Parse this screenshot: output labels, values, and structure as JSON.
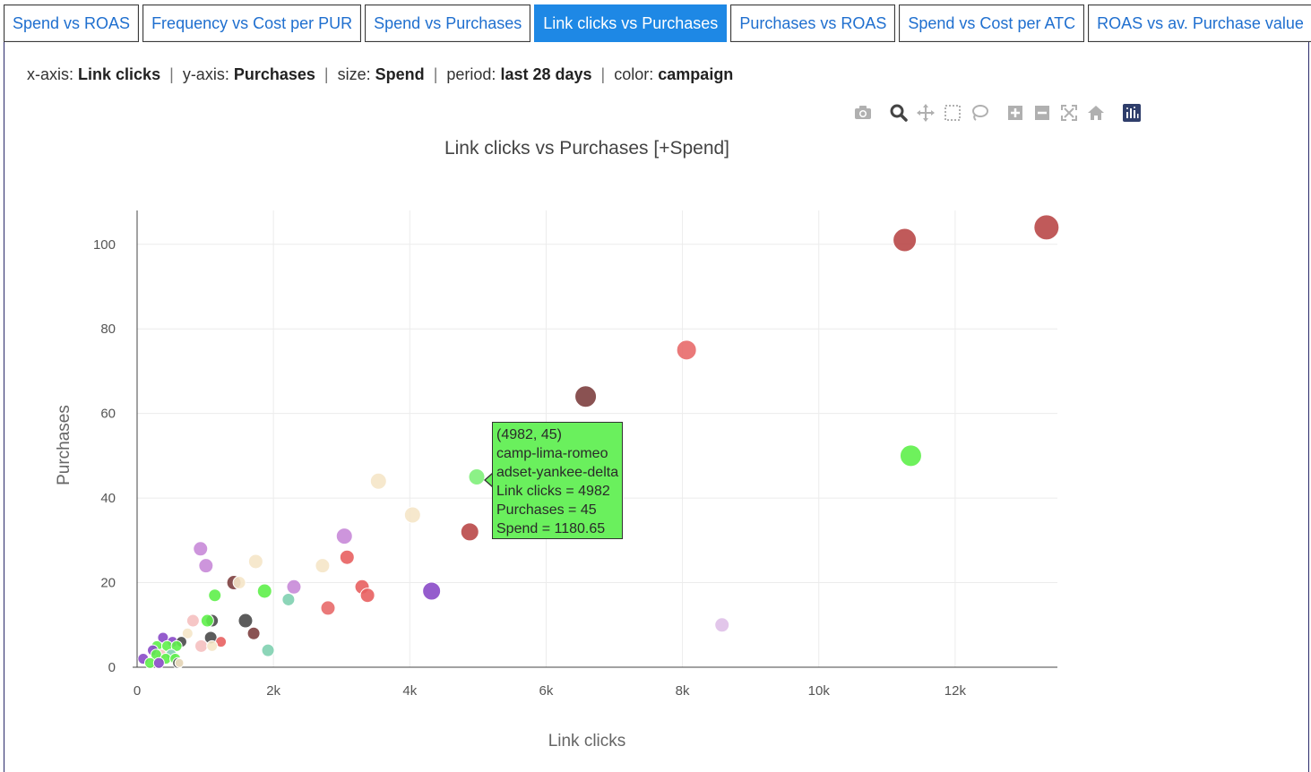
{
  "tabs": [
    {
      "label": "Spend vs ROAS",
      "active": false
    },
    {
      "label": "Frequency vs Cost per PUR",
      "active": false
    },
    {
      "label": "Spend vs Purchases",
      "active": false
    },
    {
      "label": "Link clicks vs Purchases",
      "active": true
    },
    {
      "label": "Purchases vs ROAS",
      "active": false
    },
    {
      "label": "Spend vs Cost per ATC",
      "active": false
    },
    {
      "label": "ROAS vs av. Purchase value",
      "active": false
    }
  ],
  "info": {
    "xaxis_label": "x-axis:",
    "xaxis_value": "Link clicks",
    "yaxis_label": "y-axis:",
    "yaxis_value": "Purchases",
    "size_label": "size:",
    "size_value": "Spend",
    "period_label": "period:",
    "period_value": "last 28 days",
    "color_label": "color:",
    "color_value": "campaign",
    "separator": "|"
  },
  "modebar": [
    "camera-icon",
    "zoom-icon",
    "pan-icon",
    "box-select-icon",
    "lasso-select-icon",
    "zoom-in-icon",
    "zoom-out-icon",
    "autoscale-icon",
    "reset-axes-icon",
    "plotly-logo-icon"
  ],
  "tooltip": {
    "lines": [
      "(4982, 45)",
      "camp-lima-romeo",
      "adset-yankee-delta",
      "Link clicks = 4982",
      "Purchases = 45",
      "Spend = 1180.65"
    ],
    "color": "#6af05d"
  },
  "chart_data": {
    "type": "scatter",
    "title": "Link clicks vs Purchases [+Spend]",
    "xlabel": "Link clicks",
    "ylabel": "Purchases",
    "xlim": [
      0,
      13500
    ],
    "ylim": [
      0,
      108
    ],
    "xticks": [
      0,
      2000,
      4000,
      6000,
      8000,
      10000,
      12000
    ],
    "xtick_labels": [
      "0",
      "2k",
      "4k",
      "6k",
      "8k",
      "10k",
      "12k"
    ],
    "yticks": [
      0,
      20,
      40,
      60,
      80,
      100
    ],
    "ytick_labels": [
      "0",
      "20",
      "40",
      "60",
      "80",
      "100"
    ],
    "grid": true,
    "points": [
      {
        "x": 13340,
        "y": 104,
        "size": 14,
        "color": "#b94848"
      },
      {
        "x": 11260,
        "y": 101,
        "size": 13,
        "color": "#b94848"
      },
      {
        "x": 8060,
        "y": 75,
        "size": 11,
        "color": "#e86a6a"
      },
      {
        "x": 6580,
        "y": 64,
        "size": 12,
        "color": "#7d3f3f"
      },
      {
        "x": 11350,
        "y": 50,
        "size": 12,
        "color": "#5ef04a"
      },
      {
        "x": 4982,
        "y": 45,
        "size": 9,
        "color": "#7ff07a"
      },
      {
        "x": 3540,
        "y": 44,
        "size": 9,
        "color": "#f5e6c8"
      },
      {
        "x": 4040,
        "y": 36,
        "size": 9,
        "color": "#f5e6c8"
      },
      {
        "x": 4880,
        "y": 32,
        "size": 10,
        "color": "#b94848"
      },
      {
        "x": 3040,
        "y": 31,
        "size": 9,
        "color": "#c889d8"
      },
      {
        "x": 3080,
        "y": 26,
        "size": 8,
        "color": "#e86060"
      },
      {
        "x": 2720,
        "y": 24,
        "size": 8,
        "color": "#f5e6c8"
      },
      {
        "x": 1740,
        "y": 25,
        "size": 8,
        "color": "#f5e6c8"
      },
      {
        "x": 930,
        "y": 28,
        "size": 8,
        "color": "#c889d8"
      },
      {
        "x": 1010,
        "y": 24,
        "size": 8,
        "color": "#c889d8"
      },
      {
        "x": 1420,
        "y": 20,
        "size": 8,
        "color": "#7d3f3f"
      },
      {
        "x": 1500,
        "y": 20,
        "size": 7,
        "color": "#f5e6c8"
      },
      {
        "x": 2300,
        "y": 19,
        "size": 8,
        "color": "#c889d8"
      },
      {
        "x": 1870,
        "y": 18,
        "size": 8,
        "color": "#5ef04a"
      },
      {
        "x": 1140,
        "y": 17,
        "size": 7,
        "color": "#5ef04a"
      },
      {
        "x": 4320,
        "y": 18,
        "size": 10,
        "color": "#8a4ac8"
      },
      {
        "x": 3300,
        "y": 19,
        "size": 8,
        "color": "#e86060"
      },
      {
        "x": 3380,
        "y": 17,
        "size": 8,
        "color": "#e86060"
      },
      {
        "x": 2220,
        "y": 16,
        "size": 7,
        "color": "#7fd0b0"
      },
      {
        "x": 2800,
        "y": 14,
        "size": 8,
        "color": "#e86a6a"
      },
      {
        "x": 8580,
        "y": 10,
        "size": 8,
        "color": "#dfc0e8"
      },
      {
        "x": 1590,
        "y": 11,
        "size": 8,
        "color": "#4a4a4a"
      },
      {
        "x": 1100,
        "y": 11,
        "size": 7,
        "color": "#4a4a4a"
      },
      {
        "x": 1030,
        "y": 11,
        "size": 7,
        "color": "#5ef04a"
      },
      {
        "x": 820,
        "y": 11,
        "size": 7,
        "color": "#f5c0c0"
      },
      {
        "x": 1710,
        "y": 8,
        "size": 7,
        "color": "#7d3f3f"
      },
      {
        "x": 740,
        "y": 8,
        "size": 6,
        "color": "#f5e6c8"
      },
      {
        "x": 1080,
        "y": 7,
        "size": 7,
        "color": "#4a4a4a"
      },
      {
        "x": 1230,
        "y": 6,
        "size": 6,
        "color": "#e86060"
      },
      {
        "x": 940,
        "y": 5,
        "size": 7,
        "color": "#f5c0c0"
      },
      {
        "x": 1100,
        "y": 5,
        "size": 6,
        "color": "#f5e6c8"
      },
      {
        "x": 1920,
        "y": 4,
        "size": 7,
        "color": "#7fd0b0"
      },
      {
        "x": 380,
        "y": 7,
        "size": 6,
        "color": "#8a4ac8"
      },
      {
        "x": 520,
        "y": 6,
        "size": 6,
        "color": "#8a4ac8"
      },
      {
        "x": 650,
        "y": 6,
        "size": 6,
        "color": "#4a4a4a"
      },
      {
        "x": 290,
        "y": 5,
        "size": 6,
        "color": "#5ef04a"
      },
      {
        "x": 440,
        "y": 5,
        "size": 6,
        "color": "#5ef04a"
      },
      {
        "x": 580,
        "y": 5,
        "size": 6,
        "color": "#5ef04a"
      },
      {
        "x": 230,
        "y": 4,
        "size": 6,
        "color": "#8a4ac8"
      },
      {
        "x": 350,
        "y": 3,
        "size": 6,
        "color": "#f5c0c0"
      },
      {
        "x": 500,
        "y": 3,
        "size": 6,
        "color": "#7fd0b0"
      },
      {
        "x": 280,
        "y": 3,
        "size": 6,
        "color": "#5ef04a"
      },
      {
        "x": 420,
        "y": 2,
        "size": 6,
        "color": "#5ef04a"
      },
      {
        "x": 560,
        "y": 2,
        "size": 6,
        "color": "#5ef04a"
      },
      {
        "x": 90,
        "y": 2,
        "size": 6,
        "color": "#8a4ac8"
      },
      {
        "x": 190,
        "y": 1,
        "size": 6,
        "color": "#5ef04a"
      },
      {
        "x": 320,
        "y": 1,
        "size": 6,
        "color": "#8a4ac8"
      },
      {
        "x": 600,
        "y": 1,
        "size": 6,
        "color": "#4a4a4a"
      },
      {
        "x": 620,
        "y": 1,
        "size": 5,
        "color": "#f5e6c8"
      }
    ]
  }
}
